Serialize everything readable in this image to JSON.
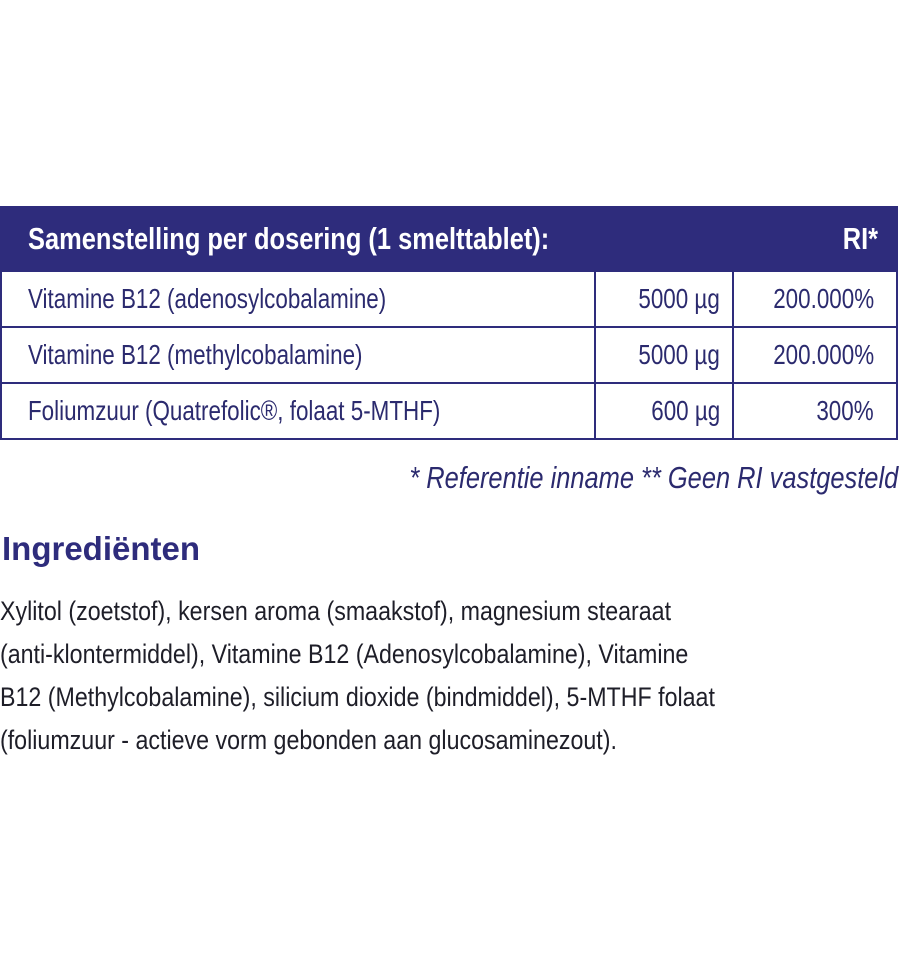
{
  "table": {
    "header": {
      "label": "Samenstelling per dosering (1 smelttablet):",
      "ri": "RI*"
    },
    "rows": [
      {
        "name": "Vitamine B12 (adenosylcobalamine)",
        "amount": "5000 µg",
        "ri": "200.000%"
      },
      {
        "name": "Vitamine B12 (methylcobalamine)",
        "amount": "5000 µg",
        "ri": "200.000%"
      },
      {
        "name": "Foliumzuur (Quatrefolic®, folaat 5-MTHF)",
        "amount": "600 µg",
        "ri": "300%"
      }
    ]
  },
  "footnote": "* Referentie inname  ** Geen RI vastgesteld",
  "ingredients": {
    "title": "Ingrediënten",
    "lines": [
      "Xylitol (zoetstof), kersen aroma (smaakstof), magnesium stearaat",
      "(anti-klontermiddel), Vitamine B12 (Adenosylcobalamine), Vitamine",
      "B12 (Methylcobalamine),  silicium dioxide (bindmiddel), 5-MTHF folaat",
      "(foliumzuur - actieve vorm gebonden aan glucosaminezout)."
    ]
  },
  "colors": {
    "brand": "#2e2c7c"
  }
}
